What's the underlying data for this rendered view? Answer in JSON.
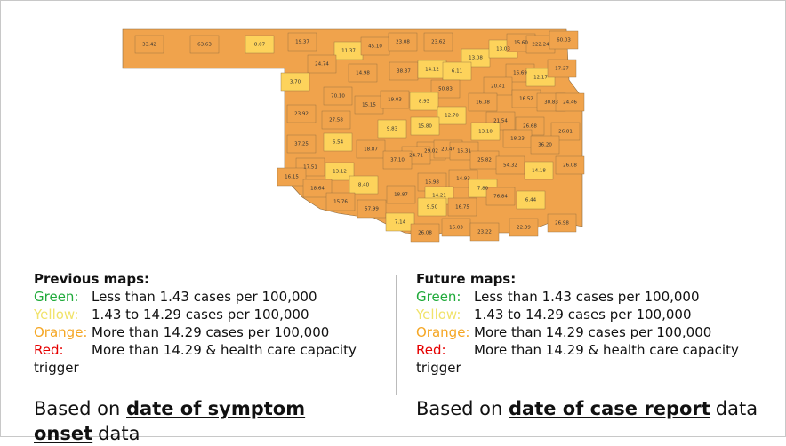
{
  "map": {
    "labels": [
      "33.42",
      "63.63",
      "8.07",
      "19.37",
      "11.37",
      "45.10",
      "23.08",
      "23.62",
      "13.08",
      "13.03",
      "15.60",
      "222.24",
      "60.03",
      "24.74",
      "14.98",
      "38.37",
      "14.12",
      "6.11",
      "16.69",
      "12.17",
      "17.27",
      "3.70",
      "50.83",
      "20.41",
      "70.10",
      "15.15",
      "19.03",
      "8.93",
      "16.38",
      "16.52",
      "30.83",
      "24.46",
      "23.92",
      "12.70",
      "27.58",
      "21.54",
      "26.68",
      "9.83",
      "15.80",
      "13.10",
      "26.81",
      "18.23",
      "36.20",
      "37.25",
      "6.54",
      "18.87",
      "29.02",
      "20.47",
      "15.31",
      "24.71",
      "37.10",
      "25.82",
      "54.32",
      "14.18",
      "26.08",
      "17.51",
      "13.12",
      "16.15",
      "14.93",
      "18.64",
      "8.40",
      "15.98",
      "7.80",
      "14.21",
      "18.87",
      "76.84",
      "15.76",
      "6.44",
      "57.99",
      "9.50",
      "16.75",
      "7.14",
      "26.98",
      "22.39",
      "16.03",
      "23.22",
      "26.08"
    ]
  },
  "left": {
    "heading": "Previous maps:",
    "legend": [
      {
        "key": "Green:",
        "text": "Less than 1.43 cases per 100,000"
      },
      {
        "key": "Yellow:",
        "text": "1.43 to 14.29 cases per 100,000"
      },
      {
        "key": "Orange:",
        "text": "More than 14.29 cases per 100,000"
      },
      {
        "key": "Red:",
        "text": "More than 14.29 & health care capacity trigger"
      }
    ],
    "basis": {
      "prefix": "Based on",
      "emphasis": "date of symptom onset",
      "suffix": "data"
    }
  },
  "right": {
    "heading": "Future maps:",
    "legend": [
      {
        "key": "Green:",
        "text": "Less than 1.43 cases per 100,000"
      },
      {
        "key": "Yellow:",
        "text": "1.43 to 14.29 cases per 100,000"
      },
      {
        "key": "Orange:",
        "text": "More than 14.29 cases per 100,000"
      },
      {
        "key": "Red:",
        "text": "More than 14.29 & health care capacity trigger"
      }
    ],
    "basis": {
      "prefix": "Based on",
      "emphasis": "date of case report",
      "suffix": "data"
    }
  }
}
